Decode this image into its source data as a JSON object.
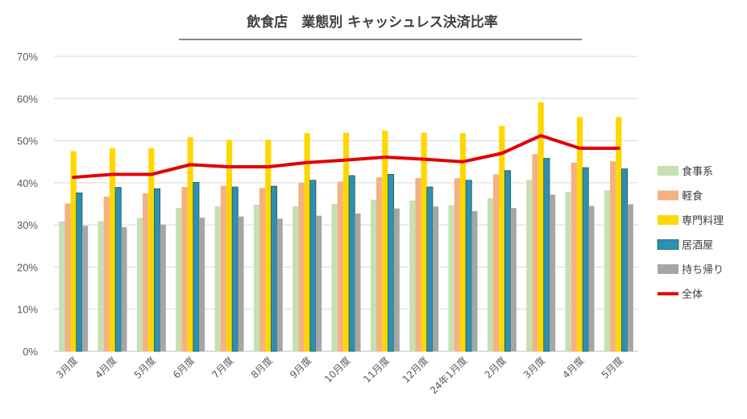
{
  "chart_data": {
    "type": "bar",
    "title": "飲食店　業態別 キャッシュレス決済比率",
    "xlabel": "",
    "ylabel": "",
    "ylim": [
      0,
      70
    ],
    "yticks": [
      0,
      10,
      20,
      30,
      40,
      50,
      60,
      70
    ],
    "ytick_labels": [
      "0%",
      "10%",
      "20%",
      "30%",
      "40%",
      "50%",
      "60%",
      "70%"
    ],
    "grid": true,
    "legend_position": "right",
    "categories": [
      "3月度",
      "4月度",
      "5月度",
      "6月度",
      "7月度",
      "8月度",
      "9月度",
      "10月度",
      "11月度",
      "12月度",
      "24年1月度",
      "2月度",
      "3月度",
      "4月度",
      "5月度"
    ],
    "series": [
      {
        "name": "食事系",
        "type": "bar",
        "color": "#c5e0b4",
        "values": [
          30.8,
          30.9,
          31.7,
          34.0,
          34.4,
          34.8,
          34.4,
          35.0,
          36.0,
          35.8,
          34.7,
          36.3,
          40.7,
          37.8,
          38.2
        ]
      },
      {
        "name": "軽食",
        "type": "bar",
        "color": "#f4b183",
        "values": [
          35.1,
          36.7,
          37.5,
          39.0,
          39.3,
          38.8,
          40.0,
          40.3,
          41.3,
          41.1,
          41.1,
          42.0,
          46.8,
          44.8,
          45.1
        ]
      },
      {
        "name": "専門料理",
        "type": "bar",
        "color": "#ffd700",
        "values": [
          47.5,
          48.2,
          48.2,
          50.8,
          50.2,
          50.2,
          51.8,
          51.9,
          52.4,
          51.9,
          51.8,
          53.5,
          59.1,
          55.6,
          55.6
        ]
      },
      {
        "name": "居酒屋",
        "type": "bar",
        "color": "#2e8fb5",
        "values": [
          37.6,
          38.9,
          38.6,
          40.1,
          39.0,
          39.2,
          40.6,
          41.7,
          42.0,
          39.0,
          40.6,
          42.9,
          45.8,
          43.6,
          43.3
        ]
      },
      {
        "name": "持ち帰り",
        "type": "bar",
        "color": "#a6a6a6",
        "values": [
          29.8,
          29.5,
          30.1,
          31.7,
          32.0,
          31.5,
          32.2,
          32.7,
          33.9,
          34.4,
          33.3,
          34.0,
          37.2,
          34.5,
          34.9
        ]
      },
      {
        "name": "全体",
        "type": "line",
        "color": "#e00000",
        "values": [
          41.3,
          42.0,
          42.0,
          44.3,
          43.8,
          43.8,
          44.8,
          45.4,
          46.1,
          45.6,
          45.0,
          47.0,
          51.2,
          48.2,
          48.2
        ]
      }
    ]
  }
}
